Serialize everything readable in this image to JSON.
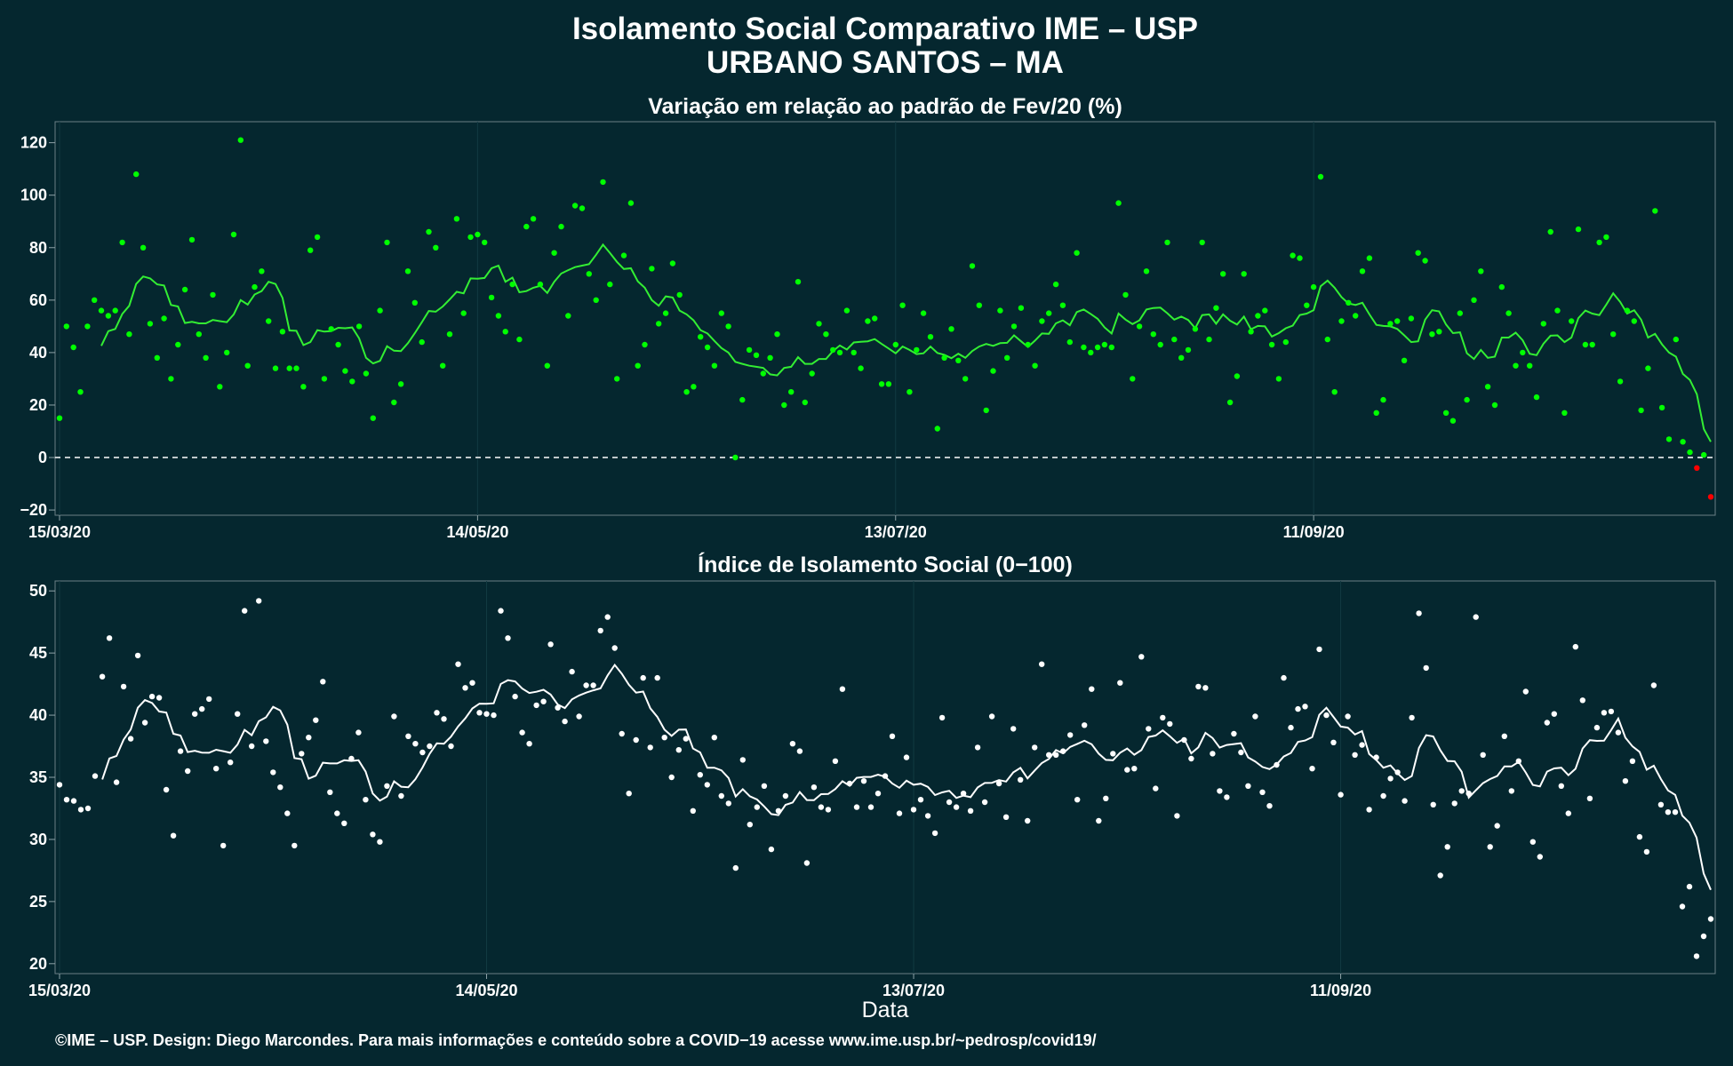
{
  "title_line1": "Isolamento Social Comparativo IME – USP",
  "title_line2": "URBANO SANTOS – MA",
  "xlabel": "Data",
  "footer": "©IME – USP. Design: Diego Marcondes. Para mais informações e conteúdo sobre a COVID−19 acesse www.ime.usp.br/~pedrosp/covid19/",
  "colors": {
    "background": "#05272F",
    "variation_points": "#00FF00",
    "variation_line": "#33EE33",
    "negative_points": "#FF0000",
    "index_points": "#FFFFFF",
    "index_line": "#FFFFFF",
    "reference_line": "#FFFFFF"
  },
  "chart_data": [
    {
      "type": "scatter",
      "title": "Variação em relação ao padrão de Fev/20 (%)",
      "x_ticks": [
        "15/03/20",
        "14/05/20",
        "13/07/20",
        "11/09/20"
      ],
      "y_ticks": [
        "−20",
        "0",
        "20",
        "40",
        "60",
        "80",
        "100",
        "120"
      ],
      "ylim": [
        -22,
        128
      ],
      "reference_line": 0,
      "moving_average": true,
      "grid": true,
      "x_start": "15/03/20",
      "values": [
        15,
        50,
        42,
        25,
        50,
        60,
        56,
        54,
        56,
        82,
        47,
        108,
        80,
        51,
        38,
        53,
        30,
        43,
        64,
        83,
        47,
        38,
        62,
        27,
        40,
        85,
        121,
        35,
        65,
        71,
        52,
        34,
        48,
        34,
        34,
        27,
        79,
        84,
        30,
        49,
        43,
        33,
        29,
        50,
        32,
        15,
        56,
        82,
        21,
        28,
        71,
        59,
        44,
        86,
        80,
        35,
        47,
        91,
        55,
        84,
        85,
        82,
        61,
        54,
        48,
        66,
        45,
        88,
        91,
        66,
        35,
        78,
        88,
        54,
        96,
        95,
        70,
        60,
        105,
        66,
        30,
        77,
        97,
        35,
        43,
        72,
        51,
        55,
        74,
        62,
        25,
        27,
        46,
        42,
        35,
        55,
        50,
        0,
        22,
        41,
        39,
        32,
        38,
        47,
        20,
        25,
        67,
        21,
        32,
        51,
        47,
        41,
        40,
        56,
        40,
        34,
        52,
        53,
        28,
        28,
        43,
        58,
        25,
        41,
        55,
        46,
        11,
        38,
        49,
        37,
        30,
        73,
        58,
        18,
        33,
        56,
        38,
        50,
        57,
        43,
        35,
        52,
        55,
        66,
        58,
        44,
        78,
        42,
        40,
        42,
        43,
        42,
        97,
        62,
        30,
        50,
        71,
        47,
        43,
        82,
        45,
        38,
        41,
        49,
        82,
        45,
        57,
        70,
        21,
        31,
        70,
        48,
        54,
        56,
        43,
        30,
        44,
        77,
        76,
        58,
        65,
        107,
        45,
        25,
        52,
        59,
        54,
        71,
        76,
        17,
        22,
        51,
        52,
        37,
        53,
        78,
        75,
        47,
        48,
        17,
        14,
        55,
        22,
        60,
        71,
        27,
        20,
        65,
        55,
        35,
        40,
        35,
        23,
        51,
        86,
        56,
        17,
        52,
        87,
        43,
        43,
        82,
        84,
        47,
        29,
        56,
        52,
        18,
        34,
        94,
        19,
        7,
        45,
        6,
        2,
        -4,
        1,
        -15
      ]
    },
    {
      "type": "scatter",
      "title": "Índice de Isolamento Social (0−100)",
      "x_ticks": [
        "15/03/20",
        "14/05/20",
        "13/07/20",
        "11/09/20"
      ],
      "y_ticks": [
        "20",
        "25",
        "30",
        "35",
        "40",
        "45",
        "50"
      ],
      "ylim": [
        19.2,
        50.8
      ],
      "moving_average": true,
      "grid": true,
      "x_start": "15/03/20",
      "values": [
        34.4,
        33.2,
        33.1,
        32.4,
        32.5,
        35.1,
        43.1,
        46.2,
        34.6,
        42.3,
        38.1,
        44.8,
        39.4,
        41.5,
        41.4,
        34.0,
        30.3,
        37.1,
        35.5,
        40.1,
        40.5,
        41.3,
        35.7,
        29.5,
        36.2,
        40.1,
        48.4,
        37.5,
        49.2,
        37.9,
        35.4,
        34.2,
        32.1,
        29.5,
        36.9,
        38.2,
        39.6,
        42.7,
        33.8,
        32.1,
        31.3,
        36.5,
        38.6,
        33.2,
        30.4,
        29.8,
        34.3,
        39.9,
        33.5,
        38.3,
        37.7,
        37.0,
        37.5,
        40.2,
        39.7,
        37.5,
        44.1,
        42.2,
        42.6,
        40.2,
        40.1,
        40.0,
        48.4,
        46.2,
        41.5,
        38.6,
        37.7,
        40.8,
        41.1,
        45.7,
        40.6,
        39.5,
        43.5,
        39.9,
        42.4,
        42.4,
        46.8,
        47.9,
        45.4,
        38.5,
        33.7,
        38.0,
        43.0,
        37.4,
        43.0,
        38.2,
        35.0,
        37.2,
        38.1,
        32.3,
        35.2,
        34.4,
        38.2,
        33.5,
        32.9,
        27.7,
        36.4,
        31.2,
        32.6,
        34.3,
        29.2,
        32.3,
        33.5,
        37.7,
        37.1,
        28.1,
        34.2,
        32.6,
        32.4,
        36.3,
        42.1,
        34.5,
        32.6,
        34.7,
        32.6,
        33.7,
        35.1,
        38.3,
        32.1,
        36.6,
        32.4,
        33.2,
        31.9,
        30.5,
        39.8,
        33.0,
        32.6,
        33.7,
        32.3,
        37.4,
        33.0,
        39.9,
        34.5,
        31.8,
        38.9,
        34.8,
        31.5,
        37.4,
        44.1,
        36.8,
        36.8,
        37.1,
        38.4,
        33.2,
        39.2,
        42.1,
        31.5,
        33.3,
        36.9,
        42.6,
        35.6,
        35.7,
        44.7,
        38.9,
        34.1,
        39.8,
        39.3,
        31.9,
        38.0,
        36.5,
        42.3,
        42.2,
        36.9,
        33.9,
        33.4,
        38.5,
        37.0,
        34.3,
        39.9,
        33.8,
        32.7,
        36.0,
        43.0,
        39.0,
        40.5,
        40.7,
        35.7,
        45.3,
        40.0,
        37.8,
        33.6,
        39.9,
        36.8,
        37.6,
        32.4,
        36.6,
        33.5,
        34.9,
        35.4,
        33.1,
        39.8,
        48.2,
        43.8,
        32.8,
        27.1,
        29.4,
        32.9,
        33.9,
        33.7,
        47.9,
        36.8,
        29.4,
        31.1,
        38.3,
        33.9,
        36.3,
        41.9,
        29.8,
        28.6,
        39.4,
        40.1,
        34.3,
        32.1,
        45.5,
        41.2,
        33.3,
        39.0,
        40.2,
        40.3,
        38.6,
        34.7,
        36.3,
        30.2,
        29.0,
        42.4,
        32.8,
        32.2,
        32.2,
        24.6,
        26.2,
        20.6,
        22.2,
        23.6
      ]
    }
  ]
}
